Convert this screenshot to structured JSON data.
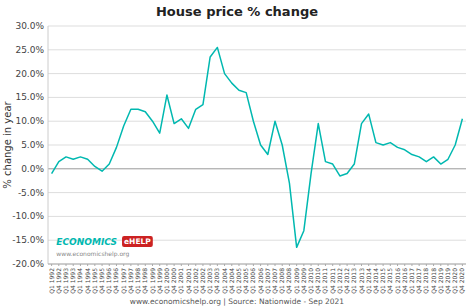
{
  "chart_data": {
    "type": "line",
    "title": "House price % change",
    "y_label": "% change in year",
    "footer": "www.economicshelp.org | Source: Nationwide - Sep 2021",
    "annotations": [
      {
        "text": "ECONOMICS",
        "color": "#00b8b0"
      },
      {
        "text": "eHELP",
        "color": "#cc2222"
      },
      {
        "text": "www.economicshelp.org"
      }
    ],
    "color": "#00b8b0",
    "grid": true,
    "ylim": [
      -20.0,
      30.0
    ],
    "yticks": [
      {
        "value": -20,
        "label": "-20.0%"
      },
      {
        "value": -15,
        "label": "-15.0%"
      },
      {
        "value": -10,
        "label": "-10.0%"
      },
      {
        "value": -5,
        "label": "-5.0%"
      },
      {
        "value": 0,
        "label": "0.0%"
      },
      {
        "value": 5,
        "label": "5.0%"
      },
      {
        "value": 10,
        "label": "10.0%"
      },
      {
        "value": 15,
        "label": "15.0%"
      },
      {
        "value": 20,
        "label": "20.0%"
      },
      {
        "value": 25,
        "label": "25.0%"
      },
      {
        "value": 30,
        "label": "30.0%"
      }
    ],
    "categories": [
      "Q1\n1992",
      "Q4\n1992",
      "Q1\n1993",
      "Q4\n1993",
      "Q1\n1994",
      "Q4\n1994",
      "Q1\n1995",
      "Q4\n1995",
      "Q1\n1996",
      "Q4\n1996",
      "Q1\n1997",
      "Q4\n1997",
      "Q1\n1998",
      "Q4\n1998",
      "Q1\n1999",
      "Q4\n1999",
      "Q1\n2000",
      "Q4\n2000",
      "Q1\n2001",
      "Q4\n2001",
      "Q1\n2002",
      "Q4\n2002",
      "Q1\n2003",
      "Q4\n2003",
      "Q1\n2004",
      "Q4\n2004",
      "Q1\n2005",
      "Q4\n2005",
      "Q1\n2006",
      "Q4\n2006",
      "Q1\n2007",
      "Q4\n2007",
      "Q1\n2008",
      "Q4\n2008",
      "Q1\n2009",
      "Q4\n2009",
      "Q1\n2010",
      "Q4\n2010",
      "Q1\n2011",
      "Q4\n2011",
      "Q1\n2012",
      "Q4\n2012",
      "Q1\n2013",
      "Q4\n2013",
      "Q1\n2014",
      "Q4\n2014",
      "Q1\n2015",
      "Q4\n2015",
      "Q1\n2016",
      "Q4\n2016",
      "Q1\n2017",
      "Q4\n2017",
      "Q1\n2018",
      "Q4\n2018",
      "Q1\n2019",
      "Q4\n2019",
      "Q1\n2020",
      "Q4\n2020"
    ],
    "values": [
      -1.0,
      1.5,
      2.5,
      2.0,
      2.5,
      2.0,
      0.5,
      -0.5,
      1.0,
      4.5,
      9.0,
      12.5,
      12.5,
      12.0,
      10.0,
      7.5,
      15.5,
      9.5,
      10.5,
      8.5,
      12.5,
      13.5,
      23.5,
      25.5,
      20.0,
      18.0,
      16.5,
      16.0,
      10.0,
      5.0,
      3.0,
      10.0,
      5.0,
      -3.0,
      -16.5,
      -13.0,
      -1.0,
      9.5,
      1.5,
      1.0,
      -1.5,
      -1.0,
      1.0,
      9.5,
      11.5,
      5.5,
      5.0,
      5.5,
      4.5,
      4.0,
      3.0,
      2.5,
      1.5,
      2.5,
      1.0,
      2.0,
      5.0,
      10.5
    ]
  }
}
